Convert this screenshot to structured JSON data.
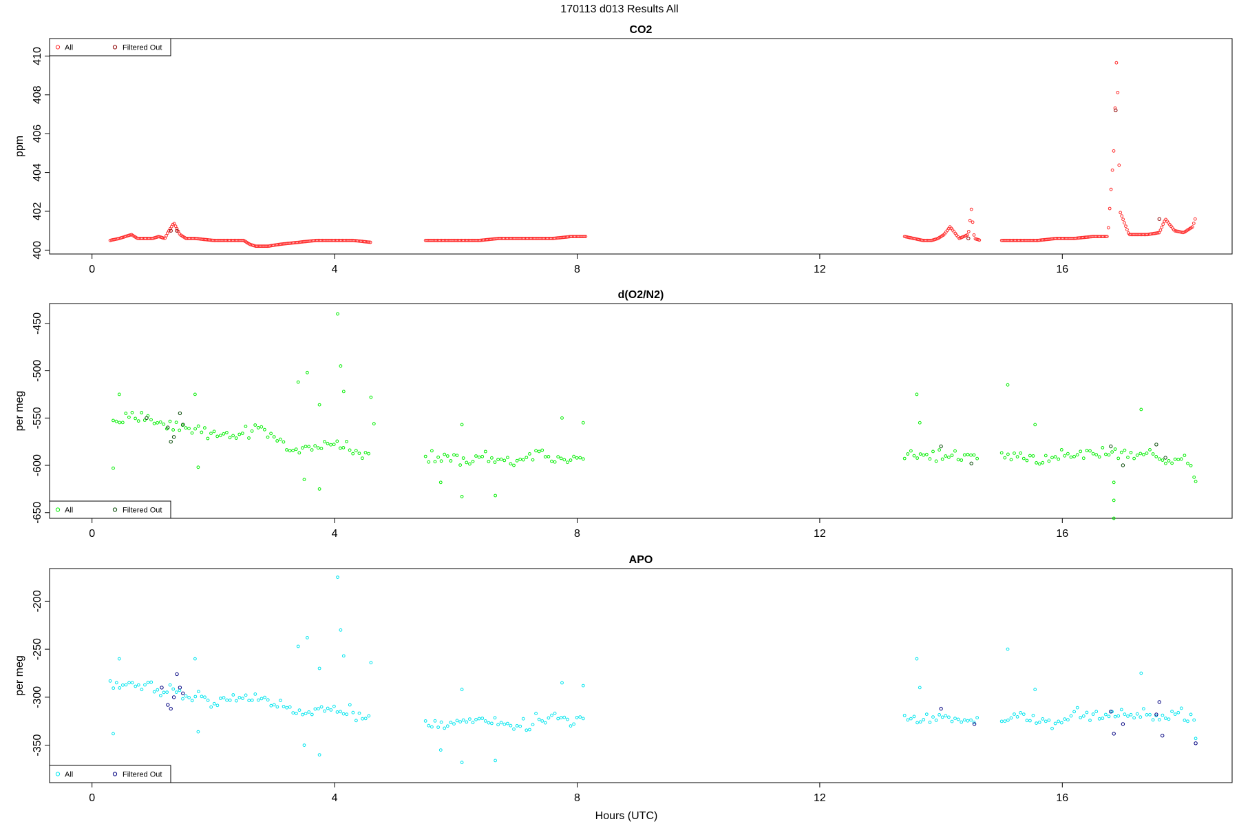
{
  "figure": {
    "title": "170113   d013   Results All",
    "xlabel": "Hours (UTC)"
  },
  "chart_data": [
    {
      "type": "scatter",
      "title": "CO2",
      "ylabel": "ppm",
      "xlim": [
        -0.7,
        18.8
      ],
      "ylim": [
        399.8,
        410.9
      ],
      "xticks": [
        0,
        4,
        8,
        12,
        16
      ],
      "yticks": [
        400,
        402,
        404,
        406,
        408,
        410
      ],
      "legend_position": "top-left",
      "legend": [
        "All",
        "Filtered Out"
      ],
      "colors": {
        "all": "#ff2a2a",
        "filtered": "#8b0000"
      },
      "series": [
        {
          "name": "All",
          "segments": [
            {
              "x": [
                0.3,
                0.45,
                0.55,
                0.65,
                0.75,
                0.85,
                1.0,
                1.1,
                1.2,
                1.25,
                1.35,
                1.45,
                1.55,
                1.7,
                2.0,
                2.3,
                2.5,
                2.6,
                2.7,
                2.9,
                3.1,
                3.4,
                3.7,
                4.0,
                4.3,
                4.6
              ],
              "y": [
                400.5,
                400.6,
                400.7,
                400.8,
                400.6,
                400.6,
                400.6,
                400.7,
                400.6,
                400.9,
                401.4,
                400.8,
                400.6,
                400.6,
                400.5,
                400.5,
                400.5,
                400.3,
                400.2,
                400.2,
                400.3,
                400.4,
                400.5,
                400.5,
                400.5,
                400.4
              ]
            },
            {
              "x": [
                5.5,
                5.8,
                6.1,
                6.4,
                6.7,
                7.0,
                7.3,
                7.6,
                7.9,
                8.15
              ],
              "y": [
                400.5,
                400.5,
                400.5,
                400.5,
                400.6,
                400.6,
                400.6,
                400.6,
                400.7,
                400.7
              ]
            },
            {
              "x": [
                13.4,
                13.55,
                13.7,
                13.85,
                13.95,
                14.05,
                14.15,
                14.3,
                14.45,
                14.5,
                14.55,
                14.65
              ],
              "y": [
                400.7,
                400.6,
                400.5,
                400.5,
                400.6,
                400.8,
                401.2,
                400.6,
                400.8,
                402.1,
                400.6,
                400.5
              ]
            },
            {
              "x": [
                15.0,
                15.3,
                15.6,
                15.9,
                16.2,
                16.5,
                16.75,
                16.85,
                16.9,
                16.95,
                17.1,
                17.4,
                17.6,
                17.7,
                17.85,
                18.0,
                18.15,
                18.2
              ],
              "y": [
                400.5,
                400.5,
                400.5,
                400.6,
                400.6,
                400.7,
                400.7,
                405.2,
                410.5,
                402.0,
                400.8,
                400.8,
                400.9,
                401.6,
                401.0,
                400.9,
                401.2,
                401.7
              ]
            }
          ]
        },
        {
          "name": "Filtered Out",
          "points": [
            [
              1.3,
              401.0
            ],
            [
              1.4,
              401.0
            ],
            [
              14.45,
              400.6
            ],
            [
              16.88,
              407.2
            ],
            [
              17.6,
              401.6
            ]
          ]
        }
      ]
    },
    {
      "type": "scatter",
      "title": "d(O2/N2)",
      "ylabel": "per meg",
      "xlim": [
        -0.7,
        18.8
      ],
      "ylim": [
        -656,
        -429
      ],
      "xticks": [
        0,
        4,
        8,
        12,
        16
      ],
      "yticks": [
        -650,
        -600,
        -550,
        -500,
        -450
      ],
      "legend_position": "bottom-left",
      "legend": [
        "All",
        "Filtered Out"
      ],
      "colors": {
        "all": "#00ee00",
        "filtered": "#004400"
      },
      "series": [
        {
          "name": "All",
          "segments": [
            {
              "x": [
                0.35,
                0.7,
                1.0,
                1.3,
                1.6,
                1.9,
                2.2,
                2.5,
                2.8,
                3.1,
                3.4,
                3.7,
                4.0,
                4.3,
                4.6
              ],
              "y": [
                -555,
                -550,
                -550,
                -558,
                -562,
                -565,
                -570,
                -565,
                -560,
                -575,
                -585,
                -580,
                -575,
                -585,
                -590
              ]
            },
            {
              "x": [
                5.5,
                5.8,
                6.1,
                6.4,
                6.7,
                7.0,
                7.3,
                7.6,
                7.9,
                8.1
              ],
              "y": [
                -592,
                -590,
                -595,
                -590,
                -592,
                -595,
                -590,
                -592,
                -595,
                -592
              ]
            },
            {
              "x": [
                13.4,
                13.7,
                14.0,
                14.3,
                14.6
              ],
              "y": [
                -588,
                -590,
                -590,
                -592,
                -592
              ]
            },
            {
              "x": [
                15.0,
                15.3,
                15.6,
                15.9,
                16.2,
                16.5,
                16.8,
                17.1,
                17.4,
                17.7,
                18.0,
                18.2
              ],
              "y": [
                -590,
                -588,
                -598,
                -592,
                -588,
                -585,
                -585,
                -590,
                -585,
                -595,
                -590,
                -610
              ]
            }
          ],
          "outliers": [
            [
              0.35,
              -603
            ],
            [
              0.45,
              -525
            ],
            [
              1.7,
              -525
            ],
            [
              1.75,
              -602
            ],
            [
              3.4,
              -512
            ],
            [
              3.55,
              -502
            ],
            [
              3.5,
              -615
            ],
            [
              3.75,
              -536
            ],
            [
              3.75,
              -625
            ],
            [
              4.05,
              -440
            ],
            [
              4.1,
              -495
            ],
            [
              4.15,
              -522
            ],
            [
              4.6,
              -528
            ],
            [
              4.65,
              -556
            ],
            [
              5.75,
              -618
            ],
            [
              6.1,
              -557
            ],
            [
              6.1,
              -633
            ],
            [
              6.65,
              -632
            ],
            [
              7.75,
              -550
            ],
            [
              8.1,
              -555
            ],
            [
              13.6,
              -525
            ],
            [
              13.65,
              -555
            ],
            [
              15.1,
              -515
            ],
            [
              15.55,
              -557
            ],
            [
              16.85,
              -618
            ],
            [
              16.85,
              -637
            ],
            [
              16.85,
              -656
            ],
            [
              17.3,
              -541
            ],
            [
              18.2,
              -617
            ]
          ]
        },
        {
          "name": "Filtered Out",
          "points": [
            [
              0.9,
              -550
            ],
            [
              1.25,
              -560
            ],
            [
              1.3,
              -575
            ],
            [
              1.35,
              -570
            ],
            [
              1.45,
              -545
            ],
            [
              1.5,
              -557
            ],
            [
              14.0,
              -580
            ],
            [
              14.5,
              -598
            ],
            [
              16.8,
              -580
            ],
            [
              17.0,
              -600
            ],
            [
              17.55,
              -578
            ],
            [
              17.7,
              -592
            ]
          ]
        }
      ]
    },
    {
      "type": "scatter",
      "title": "APO",
      "ylabel": "per meg",
      "xlim": [
        -0.7,
        18.8
      ],
      "ylim": [
        -389,
        -166
      ],
      "xticks": [
        0,
        4,
        8,
        12,
        16
      ],
      "yticks": [
        -350,
        -300,
        -250,
        -200
      ],
      "legend_position": "bottom-left",
      "legend": [
        "All",
        "Filtered Out"
      ],
      "colors": {
        "all": "#00e5ee",
        "filtered": "#000080"
      },
      "series": [
        {
          "name": "All",
          "segments": [
            {
              "x": [
                0.3,
                0.6,
                0.9,
                1.2,
                1.5,
                1.8,
                2.1,
                2.4,
                2.7,
                3.0,
                3.3,
                3.6,
                3.9,
                4.2,
                4.6
              ],
              "y": [
                -290,
                -288,
                -285,
                -292,
                -298,
                -300,
                -305,
                -300,
                -298,
                -305,
                -315,
                -315,
                -310,
                -315,
                -320
              ]
            },
            {
              "x": [
                5.5,
                5.8,
                6.1,
                6.4,
                6.7,
                7.0,
                7.3,
                7.6,
                7.9,
                8.1
              ],
              "y": [
                -325,
                -328,
                -325,
                -325,
                -322,
                -330,
                -325,
                -320,
                -325,
                -322
              ]
            },
            {
              "x": [
                13.4,
                13.7,
                14.0,
                14.3,
                14.6
              ],
              "y": [
                -322,
                -325,
                -322,
                -325,
                -325
              ]
            },
            {
              "x": [
                15.0,
                15.3,
                15.6,
                15.9,
                16.2,
                16.5,
                16.8,
                17.1,
                17.4,
                17.7,
                18.0,
                18.2
              ],
              "y": [
                -322,
                -320,
                -325,
                -325,
                -318,
                -318,
                -318,
                -322,
                -318,
                -322,
                -318,
                -325
              ]
            }
          ],
          "outliers": [
            [
              0.35,
              -338
            ],
            [
              0.45,
              -260
            ],
            [
              1.7,
              -260
            ],
            [
              1.75,
              -336
            ],
            [
              3.4,
              -247
            ],
            [
              3.55,
              -238
            ],
            [
              3.5,
              -350
            ],
            [
              3.75,
              -270
            ],
            [
              3.75,
              -360
            ],
            [
              4.05,
              -175
            ],
            [
              4.1,
              -230
            ],
            [
              4.15,
              -257
            ],
            [
              4.6,
              -264
            ],
            [
              5.75,
              -355
            ],
            [
              6.1,
              -292
            ],
            [
              6.1,
              -368
            ],
            [
              6.65,
              -366
            ],
            [
              7.75,
              -285
            ],
            [
              8.1,
              -288
            ],
            [
              13.6,
              -260
            ],
            [
              13.65,
              -290
            ],
            [
              15.1,
              -250
            ],
            [
              15.55,
              -292
            ],
            [
              17.3,
              -275
            ],
            [
              18.2,
              -343
            ]
          ]
        },
        {
          "name": "Filtered Out",
          "points": [
            [
              1.15,
              -290
            ],
            [
              1.25,
              -308
            ],
            [
              1.3,
              -312
            ],
            [
              1.35,
              -300
            ],
            [
              1.4,
              -276
            ],
            [
              1.45,
              -290
            ],
            [
              1.5,
              -296
            ],
            [
              14.0,
              -312
            ],
            [
              14.55,
              -328
            ],
            [
              16.8,
              -315
            ],
            [
              16.85,
              -338
            ],
            [
              17.0,
              -328
            ],
            [
              17.55,
              -318
            ],
            [
              17.6,
              -305
            ],
            [
              17.65,
              -340
            ],
            [
              18.2,
              -348
            ]
          ]
        }
      ]
    }
  ]
}
